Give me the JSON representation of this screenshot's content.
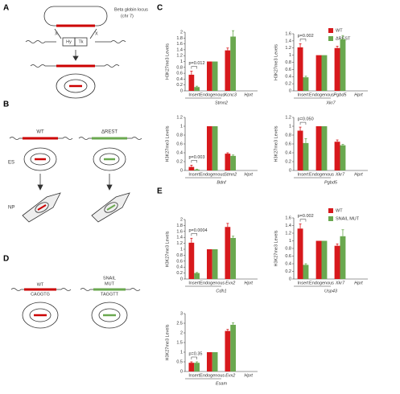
{
  "panels": {
    "A": "A",
    "B": "B",
    "C": "C",
    "D": "D",
    "E": "E"
  },
  "diagrams": {
    "A": {
      "locus_label": [
        "Beta globin locus",
        "(chr 7)"
      ],
      "site_left": "X",
      "site_right": "X",
      "cassette_left": "Hy",
      "cassette_right": "Tk"
    },
    "B": {
      "left_label": "WT",
      "right_label": "ΔREST",
      "stage_1": "ES",
      "stage_2": "NP"
    },
    "D": {
      "left_label": "WT",
      "left_seq": "CAGGTG",
      "right_label": [
        "SNAIL",
        "MUT"
      ],
      "right_seq": "TAGGTT"
    }
  },
  "chart_data": [
    {
      "type": "bar",
      "ylabel": "H3K27me3 Levels",
      "xlabel": "Stmn2",
      "categories": [
        "Insert",
        "Endogenous",
        "Kcnc3",
        "Hprt"
      ],
      "series": [
        {
          "name": "WT",
          "color": "#d7191c",
          "values": [
            0.55,
            1.0,
            1.38,
            0.0
          ],
          "errors": [
            0.12,
            0.0,
            0.08,
            0.0
          ]
        },
        {
          "name": "ΔREST",
          "color": "#6aa84f",
          "values": [
            0.13,
            1.0,
            1.85,
            0.0
          ],
          "errors": [
            0.03,
            0.0,
            0.2,
            0.0
          ]
        }
      ],
      "annotation": "p=0.012",
      "ylim": [
        0,
        2
      ],
      "yticks": [
        0,
        0.2,
        0.4,
        0.6,
        0.8,
        1,
        1.2,
        1.4,
        1.6,
        1.8,
        2
      ]
    },
    {
      "type": "bar",
      "ylabel": "H3K27me3 Levels",
      "xlabel": "Xkr7",
      "categories": [
        "Insert",
        "Endogenous",
        "Pgbd5",
        "Hprt"
      ],
      "series": [
        {
          "color": "#d7191c",
          "values": [
            1.22,
            1.0,
            1.2,
            0.0
          ],
          "errors": [
            0.1,
            0.0,
            0.05,
            0.0
          ]
        },
        {
          "color": "#6aa84f",
          "values": [
            0.38,
            1.0,
            1.45,
            0.0
          ],
          "errors": [
            0.03,
            0.0,
            0.1,
            0.0
          ]
        }
      ],
      "annotation": "p=0.002",
      "ylim": [
        0,
        1.6
      ],
      "yticks": [
        0,
        0.2,
        0.4,
        0.6,
        0.8,
        1,
        1.2,
        1.4,
        1.6
      ]
    },
    {
      "type": "bar",
      "ylabel": "H3K27me3 Levels",
      "xlabel": "Bdnf",
      "categories": [
        "Insert",
        "Endogenous",
        "Stmn2",
        "Hprt"
      ],
      "series": [
        {
          "color": "#d7191c",
          "values": [
            0.08,
            1.0,
            0.38,
            0.0
          ],
          "errors": [
            0.04,
            0.0,
            0.02,
            0.0
          ]
        },
        {
          "color": "#6aa84f",
          "values": [
            0.02,
            1.0,
            0.33,
            0.0
          ],
          "errors": [
            0.01,
            0.0,
            0.02,
            0.0
          ]
        }
      ],
      "annotation": "p=0.003",
      "ylim": [
        0,
        1.2
      ],
      "yticks": [
        0,
        0.2,
        0.4,
        0.6,
        0.8,
        1,
        1.2
      ]
    },
    {
      "type": "bar",
      "ylabel": "H3K27me3 Levels",
      "xlabel": "Pgbd5",
      "categories": [
        "Insert",
        "Endogenous",
        "Xkr7",
        "Hprt"
      ],
      "series": [
        {
          "color": "#d7191c",
          "values": [
            0.9,
            1.0,
            0.65,
            0.0
          ],
          "errors": [
            0.08,
            0.0,
            0.04,
            0.0
          ]
        },
        {
          "color": "#6aa84f",
          "values": [
            0.62,
            1.0,
            0.57,
            0.0
          ],
          "errors": [
            0.1,
            0.0,
            0.02,
            0.0
          ]
        }
      ],
      "annotation": "p=0.050",
      "ylim": [
        0,
        1.2
      ],
      "yticks": [
        0,
        0.2,
        0.4,
        0.6,
        0.8,
        1,
        1.2
      ]
    },
    {
      "type": "bar",
      "ylabel": "H3K27me3 Levels",
      "xlabel": "Cdh1",
      "categories": [
        "Insert",
        "Endogenous",
        "Evx2",
        "Hprt"
      ],
      "series": [
        {
          "name": "WT",
          "color": "#d7191c",
          "values": [
            1.22,
            1.0,
            1.75,
            0.0
          ],
          "errors": [
            0.15,
            0.0,
            0.12,
            0.0
          ]
        },
        {
          "name": "SNAIL MUT",
          "color": "#6aa84f",
          "values": [
            0.2,
            1.0,
            1.38,
            0.0
          ],
          "errors": [
            0.02,
            0.0,
            0.06,
            0.0
          ]
        }
      ],
      "annotation": "p=0.0004",
      "ylim": [
        0,
        2
      ],
      "yticks": [
        0,
        0.2,
        0.4,
        0.6,
        0.8,
        1,
        1.2,
        1.4,
        1.6,
        1.8,
        2
      ]
    },
    {
      "type": "bar",
      "ylabel": "H3K27me3 Levels",
      "xlabel": "Usp43",
      "categories": [
        "Insert",
        "Endogenous",
        "Xkr7",
        "Hprt"
      ],
      "series": [
        {
          "color": "#d7191c",
          "values": [
            1.32,
            1.0,
            0.87,
            0.0
          ],
          "errors": [
            0.12,
            0.0,
            0.05,
            0.0
          ]
        },
        {
          "color": "#6aa84f",
          "values": [
            0.37,
            1.0,
            1.12,
            0.0
          ],
          "errors": [
            0.03,
            0.0,
            0.17,
            0.0
          ]
        }
      ],
      "annotation": "p=0.002",
      "ylim": [
        0,
        1.6
      ],
      "yticks": [
        0,
        0.2,
        0.4,
        0.6,
        0.8,
        1,
        1.2,
        1.4,
        1.6
      ]
    },
    {
      "type": "bar",
      "ylabel": "H3K27me3 Levels",
      "xlabel": "Esam",
      "categories": [
        "Insert",
        "Endogenous",
        "Evx2",
        "Hprt"
      ],
      "series": [
        {
          "color": "#d7191c",
          "values": [
            0.45,
            1.0,
            2.1,
            0.0
          ],
          "errors": [
            0.05,
            0.0,
            0.08,
            0.0
          ]
        },
        {
          "color": "#6aa84f",
          "values": [
            0.45,
            1.0,
            2.42,
            0.0
          ],
          "errors": [
            0.05,
            0.0,
            0.1,
            0.0
          ]
        }
      ],
      "annotation": "p=0.35",
      "ylim": [
        0,
        3
      ],
      "yticks": [
        0,
        0.5,
        1,
        1.5,
        2,
        2.5,
        3
      ]
    }
  ]
}
